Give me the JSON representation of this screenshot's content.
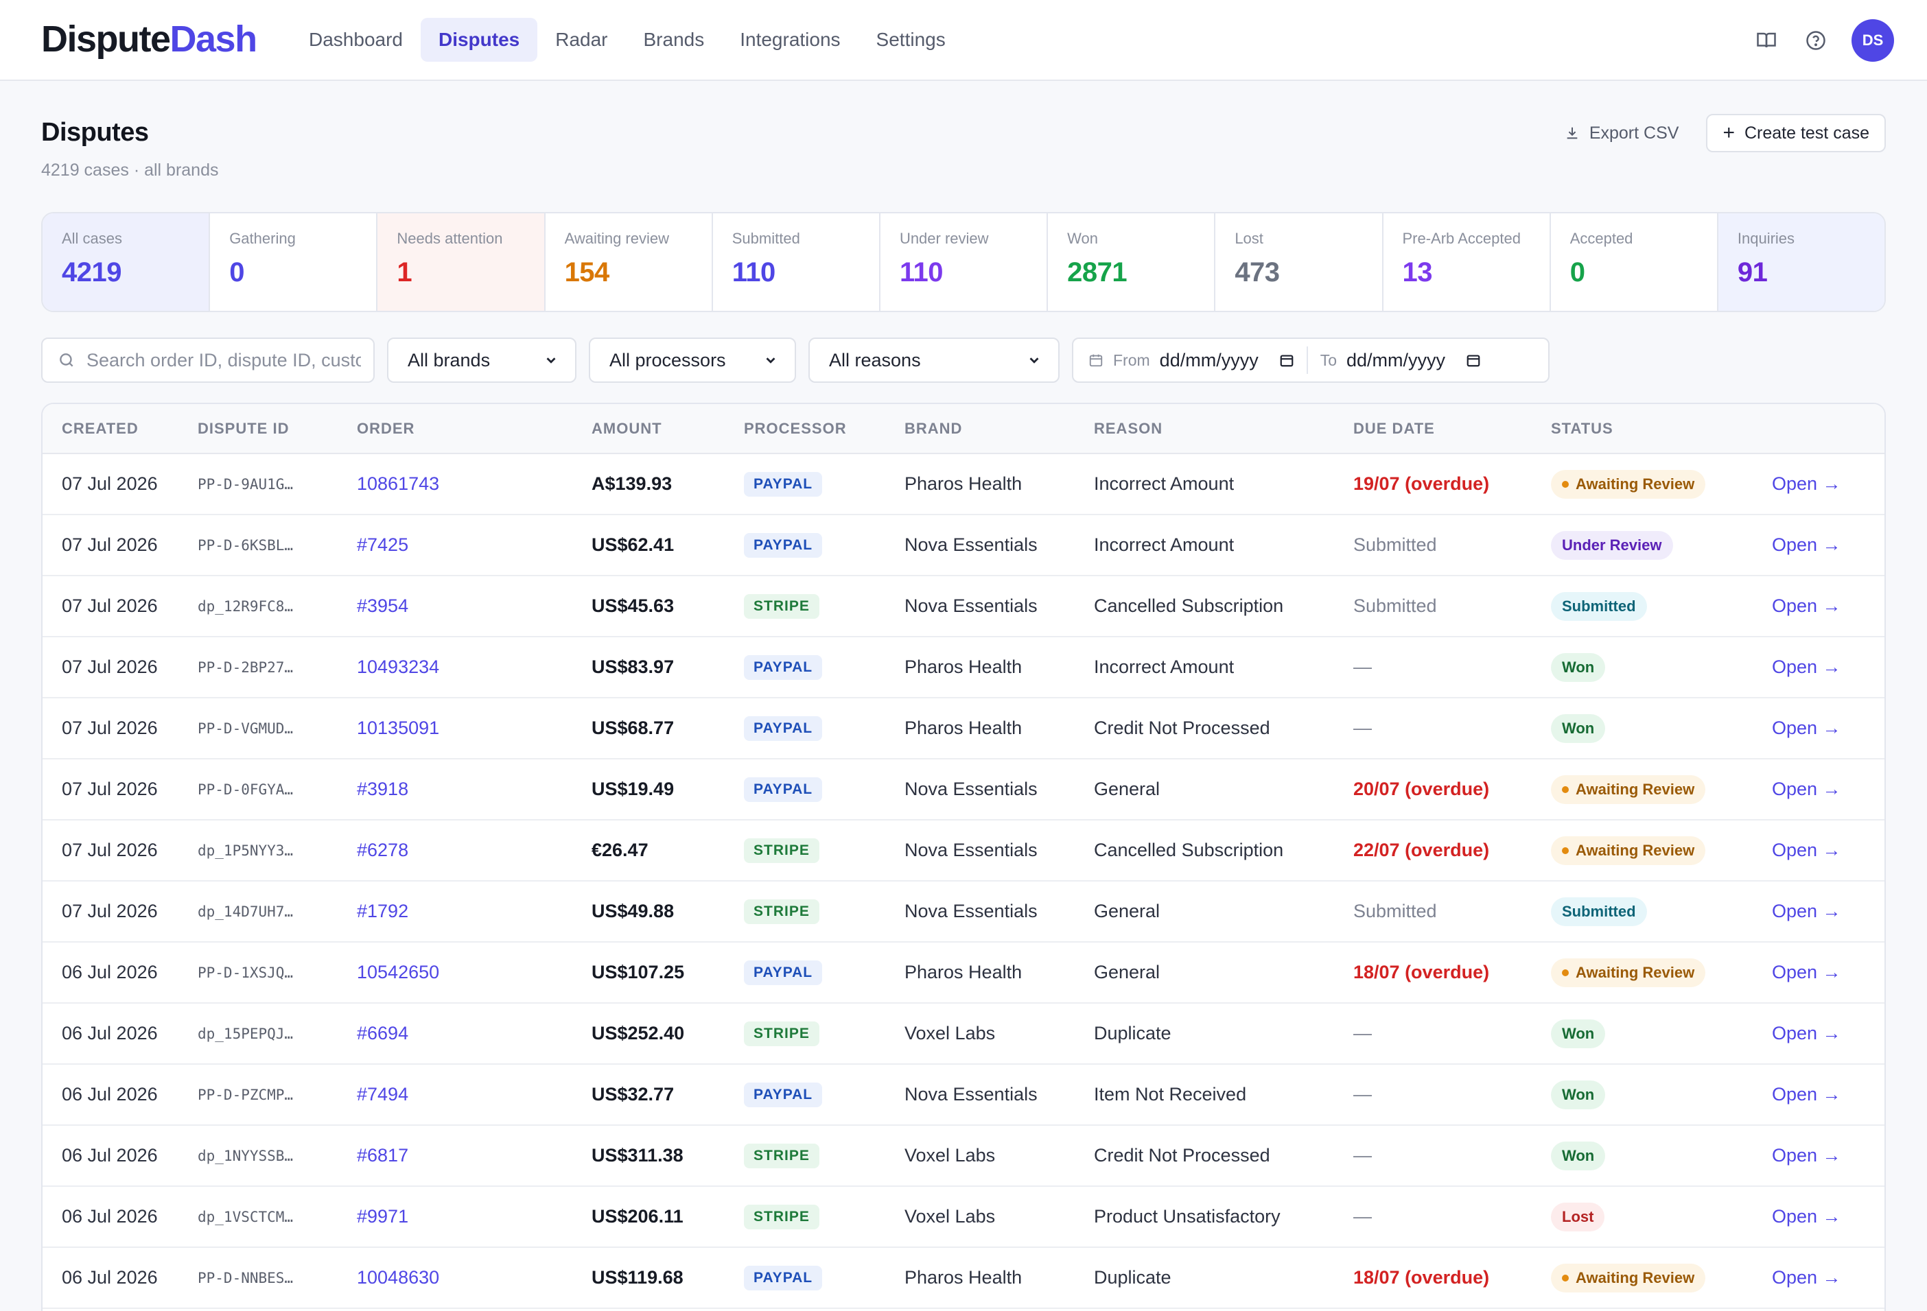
{
  "app": {
    "logo_part1": "Dispute",
    "logo_part2": "Dash",
    "avatar": "DS"
  },
  "nav": [
    {
      "label": "Dashboard",
      "active": false
    },
    {
      "label": "Disputes",
      "active": true
    },
    {
      "label": "Radar",
      "active": false
    },
    {
      "label": "Brands",
      "active": false
    },
    {
      "label": "Integrations",
      "active": false
    },
    {
      "label": "Settings",
      "active": false
    }
  ],
  "header": {
    "title": "Disputes",
    "subtitle": "4219 cases · all brands",
    "export_label": "Export CSV",
    "create_label": "Create test case"
  },
  "stats": [
    {
      "label": "All cases",
      "value": "4219",
      "color": "#4f46e5"
    },
    {
      "label": "Gathering",
      "value": "0",
      "color": "#4f46e5"
    },
    {
      "label": "Needs attention",
      "value": "1",
      "color": "#dc2626"
    },
    {
      "label": "Awaiting review",
      "value": "154",
      "color": "#d97706"
    },
    {
      "label": "Submitted",
      "value": "110",
      "color": "#4f46e5"
    },
    {
      "label": "Under review",
      "value": "110",
      "color": "#7c3aed"
    },
    {
      "label": "Won",
      "value": "2871",
      "color": "#16a34a"
    },
    {
      "label": "Lost",
      "value": "473",
      "color": "#6b7280"
    },
    {
      "label": "Pre-Arb Accepted",
      "value": "13",
      "color": "#7c3aed"
    },
    {
      "label": "Accepted",
      "value": "0",
      "color": "#16a34a"
    },
    {
      "label": "Inquiries",
      "value": "91",
      "color": "#6d28d9"
    }
  ],
  "filters": {
    "search_placeholder": "Search order ID, dispute ID, custo",
    "brand": "All brands",
    "processor": "All processors",
    "reason": "All reasons",
    "from_label": "From",
    "from_value": "dd/mm/yyyy",
    "to_label": "To",
    "to_value": "dd/mm/yyyy"
  },
  "table": {
    "columns": [
      "CREATED",
      "DISPUTE ID",
      "ORDER",
      "AMOUNT",
      "PROCESSOR",
      "BRAND",
      "REASON",
      "DUE DATE",
      "STATUS",
      ""
    ],
    "open_label": "Open →",
    "rows": [
      {
        "created": "07 Jul 2026",
        "id": "PP-D-9AU1G…",
        "order": "10861743",
        "amount": "A$139.93",
        "processor": "PAYPAL",
        "brand": "Pharos Health",
        "reason": "Incorrect Amount",
        "due": "19/07 (overdue)",
        "due_type": "over",
        "status": "Awaiting Review",
        "status_type": "await"
      },
      {
        "created": "07 Jul 2026",
        "id": "PP-D-6KSBL…",
        "order": "#7425",
        "amount": "US$62.41",
        "processor": "PAYPAL",
        "brand": "Nova Essentials",
        "reason": "Incorrect Amount",
        "due": "Submitted",
        "due_type": "sub",
        "status": "Under Review",
        "status_type": "review"
      },
      {
        "created": "07 Jul 2026",
        "id": "dp_12R9FC8…",
        "order": "#3954",
        "amount": "US$45.63",
        "processor": "STRIPE",
        "brand": "Nova Essentials",
        "reason": "Cancelled Subscription",
        "due": "Submitted",
        "due_type": "sub",
        "status": "Submitted",
        "status_type": "sub"
      },
      {
        "created": "07 Jul 2026",
        "id": "PP-D-2BP27…",
        "order": "10493234",
        "amount": "US$83.97",
        "processor": "PAYPAL",
        "brand": "Pharos Health",
        "reason": "Incorrect Amount",
        "due": "—",
        "due_type": "none",
        "status": "Won",
        "status_type": "won"
      },
      {
        "created": "07 Jul 2026",
        "id": "PP-D-VGMUD…",
        "order": "10135091",
        "amount": "US$68.77",
        "processor": "PAYPAL",
        "brand": "Pharos Health",
        "reason": "Credit Not Processed",
        "due": "—",
        "due_type": "none",
        "status": "Won",
        "status_type": "won"
      },
      {
        "created": "07 Jul 2026",
        "id": "PP-D-0FGYA…",
        "order": "#3918",
        "amount": "US$19.49",
        "processor": "PAYPAL",
        "brand": "Nova Essentials",
        "reason": "General",
        "due": "20/07 (overdue)",
        "due_type": "over",
        "status": "Awaiting Review",
        "status_type": "await"
      },
      {
        "created": "07 Jul 2026",
        "id": "dp_1P5NYY3…",
        "order": "#6278",
        "amount": "€26.47",
        "processor": "STRIPE",
        "brand": "Nova Essentials",
        "reason": "Cancelled Subscription",
        "due": "22/07 (overdue)",
        "due_type": "over",
        "status": "Awaiting Review",
        "status_type": "await"
      },
      {
        "created": "07 Jul 2026",
        "id": "dp_14D7UH7…",
        "order": "#1792",
        "amount": "US$49.88",
        "processor": "STRIPE",
        "brand": "Nova Essentials",
        "reason": "General",
        "due": "Submitted",
        "due_type": "sub",
        "status": "Submitted",
        "status_type": "sub"
      },
      {
        "created": "06 Jul 2026",
        "id": "PP-D-1XSJQ…",
        "order": "10542650",
        "amount": "US$107.25",
        "processor": "PAYPAL",
        "brand": "Pharos Health",
        "reason": "General",
        "due": "18/07 (overdue)",
        "due_type": "over",
        "status": "Awaiting Review",
        "status_type": "await"
      },
      {
        "created": "06 Jul 2026",
        "id": "dp_15PEPQJ…",
        "order": "#6694",
        "amount": "US$252.40",
        "processor": "STRIPE",
        "brand": "Voxel Labs",
        "reason": "Duplicate",
        "due": "—",
        "due_type": "none",
        "status": "Won",
        "status_type": "won"
      },
      {
        "created": "06 Jul 2026",
        "id": "PP-D-PZCMP…",
        "order": "#7494",
        "amount": "US$32.77",
        "processor": "PAYPAL",
        "brand": "Nova Essentials",
        "reason": "Item Not Received",
        "due": "—",
        "due_type": "none",
        "status": "Won",
        "status_type": "won"
      },
      {
        "created": "06 Jul 2026",
        "id": "dp_1NYYSSB…",
        "order": "#6817",
        "amount": "US$311.38",
        "processor": "STRIPE",
        "brand": "Voxel Labs",
        "reason": "Credit Not Processed",
        "due": "—",
        "due_type": "none",
        "status": "Won",
        "status_type": "won"
      },
      {
        "created": "06 Jul 2026",
        "id": "dp_1VSCTCM…",
        "order": "#9971",
        "amount": "US$206.11",
        "processor": "STRIPE",
        "brand": "Voxel Labs",
        "reason": "Product Unsatisfactory",
        "due": "—",
        "due_type": "none",
        "status": "Lost",
        "status_type": "lost"
      },
      {
        "created": "06 Jul 2026",
        "id": "PP-D-NNBES…",
        "order": "10048630",
        "amount": "US$119.68",
        "processor": "PAYPAL",
        "brand": "Pharos Health",
        "reason": "Duplicate",
        "due": "18/07 (overdue)",
        "due_type": "over",
        "status": "Awaiting Review",
        "status_type": "await"
      }
    ]
  }
}
